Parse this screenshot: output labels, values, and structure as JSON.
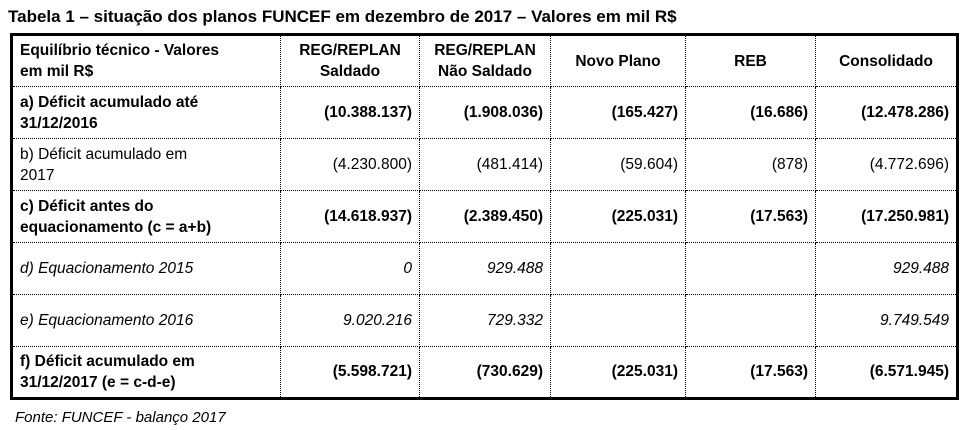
{
  "title": "Tabela 1 – situação dos planos FUNCEF em dezembro de 2017 – Valores em mil R$",
  "colors": {
    "text": "#000000",
    "background": "#ffffff",
    "border": "#000000"
  },
  "table": {
    "header_lines": [
      [
        "Equilíbrio técnico - Valores",
        "em mil R$"
      ],
      [
        "REG/REPLAN",
        "Saldado"
      ],
      [
        "REG/REPLAN",
        "Não Saldado"
      ],
      [
        "Novo Plano"
      ],
      [
        "REB"
      ],
      [
        "Consolidado"
      ]
    ],
    "rows": [
      {
        "style": "bold",
        "label_lines": [
          "a) Déficit acumulado até",
          "31/12/2016"
        ],
        "values": [
          "(10.388.137)",
          "(1.908.036)",
          "(165.427)",
          "(16.686)",
          "(12.478.286)"
        ]
      },
      {
        "style": "regular",
        "label_lines": [
          "b) Déficit acumulado em",
          "2017"
        ],
        "values": [
          "(4.230.800)",
          "(481.414)",
          "(59.604)",
          "(878)",
          "(4.772.696)"
        ]
      },
      {
        "style": "bold",
        "label_lines": [
          "c) Déficit antes do",
          "equacionamento (c = a+b)"
        ],
        "values": [
          "(14.618.937)",
          "(2.389.450)",
          "(225.031)",
          "(17.563)",
          "(17.250.981)"
        ]
      },
      {
        "style": "italic",
        "label_lines": [
          "d) Equacionamento 2015"
        ],
        "values": [
          "0",
          "929.488",
          "",
          "",
          "929.488"
        ]
      },
      {
        "style": "italic",
        "label_lines": [
          "e) Equacionamento 2016"
        ],
        "values": [
          "9.020.216",
          "729.332",
          "",
          "",
          "9.749.549"
        ]
      },
      {
        "style": "bold",
        "label_lines": [
          "f) Déficit acumulado em",
          "31/12/2017 (e = c-d-e)"
        ],
        "values": [
          "(5.598.721)",
          "(730.629)",
          "(225.031)",
          "(17.563)",
          "(6.571.945)"
        ]
      }
    ]
  },
  "source": "Fonte: FUNCEF - balanço 2017"
}
